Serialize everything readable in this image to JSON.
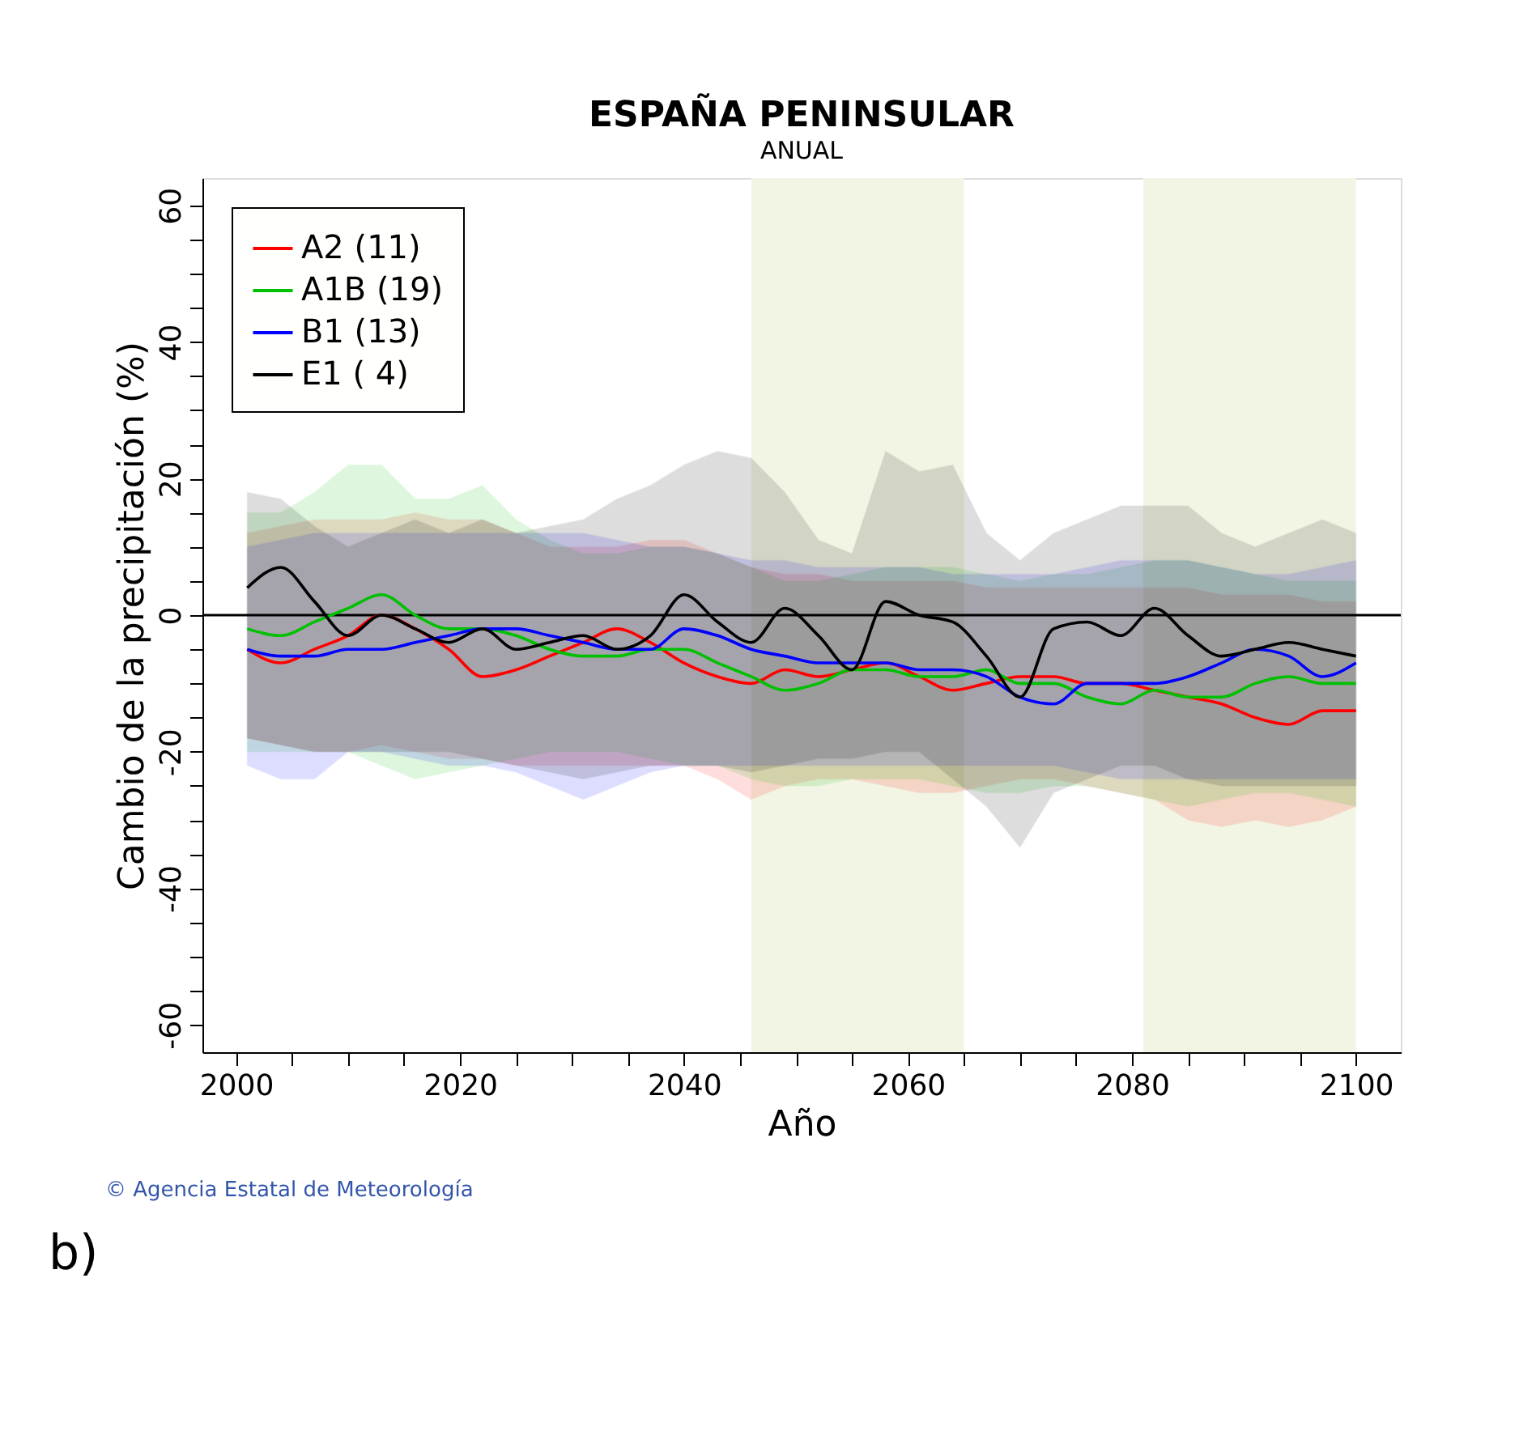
{
  "chart_data": {
    "type": "line",
    "title": "ESPAÑA PENINSULAR",
    "subtitle": "ANUAL",
    "xlabel": "Año",
    "ylabel": "Cambio de la precipitación (%)",
    "x": [
      2001,
      2004,
      2007,
      2010,
      2013,
      2016,
      2019,
      2022,
      2025,
      2028,
      2031,
      2034,
      2037,
      2040,
      2043,
      2046,
      2049,
      2052,
      2055,
      2058,
      2061,
      2064,
      2067,
      2070,
      2073,
      2076,
      2079,
      2082,
      2085,
      2088,
      2091,
      2094,
      2097,
      2100
    ],
    "series": [
      {
        "name": "A2 (11)",
        "color": "#ff0000",
        "values": [
          -5,
          -7,
          -5,
          -3,
          0,
          -2,
          -5,
          -9,
          -8,
          -6,
          -4,
          -2,
          -4,
          -7,
          -9,
          -10,
          -8,
          -9,
          -8,
          -7,
          -9,
          -11,
          -10,
          -9,
          -9,
          -10,
          -10,
          -11,
          -12,
          -13,
          -15,
          -16,
          -14,
          -14
        ],
        "upper": [
          12,
          13,
          14,
          14,
          14,
          15,
          14,
          14,
          12,
          10,
          10,
          10,
          11,
          11,
          9,
          7,
          6,
          6,
          5,
          5,
          5,
          5,
          4,
          4,
          4,
          4,
          4,
          4,
          4,
          3,
          3,
          3,
          2,
          2
        ],
        "lower": [
          -18,
          -19,
          -20,
          -20,
          -19,
          -20,
          -21,
          -21,
          -22,
          -22,
          -22,
          -22,
          -22,
          -22,
          -24,
          -27,
          -25,
          -24,
          -24,
          -25,
          -26,
          -26,
          -25,
          -24,
          -24,
          -25,
          -26,
          -27,
          -30,
          -31,
          -30,
          -31,
          -30,
          -28
        ]
      },
      {
        "name": "A1B (19)",
        "color": "#00c000",
        "values": [
          -2,
          -3,
          -1,
          1,
          3,
          0,
          -2,
          -2,
          -3,
          -5,
          -6,
          -6,
          -5,
          -5,
          -7,
          -9,
          -11,
          -10,
          -8,
          -8,
          -9,
          -9,
          -8,
          -10,
          -10,
          -12,
          -13,
          -11,
          -12,
          -12,
          -10,
          -9,
          -10,
          -10
        ],
        "upper": [
          15,
          15,
          18,
          22,
          22,
          17,
          17,
          19,
          14,
          11,
          9,
          9,
          10,
          10,
          9,
          7,
          5,
          5,
          6,
          7,
          7,
          7,
          6,
          5,
          6,
          6,
          7,
          8,
          8,
          7,
          6,
          5,
          5,
          5
        ],
        "lower": [
          -20,
          -20,
          -20,
          -20,
          -22,
          -24,
          -23,
          -22,
          -21,
          -20,
          -20,
          -20,
          -21,
          -22,
          -22,
          -24,
          -25,
          -25,
          -24,
          -24,
          -24,
          -25,
          -26,
          -26,
          -25,
          -25,
          -26,
          -27,
          -28,
          -27,
          -26,
          -26,
          -27,
          -28
        ]
      },
      {
        "name": "B1 (13)",
        "color": "#0000ff",
        "values": [
          -5,
          -6,
          -6,
          -5,
          -5,
          -4,
          -3,
          -2,
          -2,
          -3,
          -4,
          -5,
          -5,
          -2,
          -3,
          -5,
          -6,
          -7,
          -7,
          -7,
          -8,
          -8,
          -9,
          -12,
          -13,
          -10,
          -10,
          -10,
          -9,
          -7,
          -5,
          -6,
          -9,
          -7
        ],
        "upper": [
          10,
          11,
          12,
          12,
          12,
          12,
          12,
          12,
          12,
          12,
          12,
          11,
          10,
          10,
          9,
          8,
          8,
          7,
          7,
          7,
          7,
          6,
          6,
          6,
          6,
          7,
          8,
          8,
          8,
          7,
          6,
          6,
          7,
          8
        ],
        "lower": [
          -22,
          -24,
          -24,
          -20,
          -20,
          -21,
          -22,
          -22,
          -23,
          -25,
          -27,
          -25,
          -23,
          -22,
          -22,
          -22,
          -22,
          -22,
          -22,
          -22,
          -22,
          -22,
          -22,
          -22,
          -22,
          -23,
          -24,
          -24,
          -24,
          -24,
          -24,
          -24,
          -24,
          -24
        ]
      },
      {
        "name": "E1 ( 4)",
        "color": "#000000",
        "values": [
          4,
          7,
          2,
          -3,
          0,
          -2,
          -4,
          -2,
          -5,
          -4,
          -3,
          -5,
          -3,
          3,
          -1,
          -4,
          1,
          -3,
          -8,
          2,
          0,
          -1,
          -6,
          -12,
          -2,
          -1,
          -3,
          1,
          -3,
          -6,
          -5,
          -4,
          -5,
          -6
        ],
        "upper": [
          18,
          17,
          13,
          10,
          12,
          14,
          12,
          14,
          12,
          13,
          14,
          17,
          19,
          22,
          24,
          23,
          18,
          11,
          9,
          24,
          21,
          22,
          12,
          8,
          12,
          14,
          16,
          16,
          16,
          12,
          10,
          12,
          14,
          12
        ],
        "lower": [
          -18,
          -19,
          -20,
          -20,
          -20,
          -20,
          -20,
          -21,
          -22,
          -23,
          -24,
          -23,
          -22,
          -22,
          -22,
          -23,
          -22,
          -21,
          -21,
          -20,
          -20,
          -24,
          -28,
          -34,
          -26,
          -24,
          -22,
          -22,
          -24,
          -25,
          -25,
          -25,
          -25,
          -25
        ]
      }
    ],
    "xlim": [
      1997,
      2104
    ],
    "ylim": [
      -64,
      64
    ],
    "xticks": [
      2000,
      {
        "value": 2005,
        "label": null
      },
      {
        "value": 2010,
        "label": null
      },
      {
        "value": 2015,
        "label": null
      },
      2020,
      {
        "value": 2025,
        "label": null
      },
      {
        "value": 2030,
        "label": null
      },
      {
        "value": 2035,
        "label": null
      },
      2040,
      {
        "value": 2045,
        "label": null
      },
      {
        "value": 2050,
        "label": null
      },
      {
        "value": 2055,
        "label": null
      },
      2060,
      {
        "value": 2065,
        "label": null
      },
      {
        "value": 2070,
        "label": null
      },
      {
        "value": 2075,
        "label": null
      },
      2080,
      {
        "value": 2085,
        "label": null
      },
      {
        "value": 2090,
        "label": null
      },
      {
        "value": 2095,
        "label": null
      },
      2100
    ],
    "yticks": [
      -60,
      {
        "value": -55,
        "label": null
      },
      {
        "value": -50,
        "label": null
      },
      {
        "value": -45,
        "label": null
      },
      -40,
      {
        "value": -35,
        "label": null
      },
      {
        "value": -30,
        "label": null
      },
      {
        "value": -25,
        "label": null
      },
      -20,
      {
        "value": -15,
        "label": null
      },
      {
        "value": -10,
        "label": null
      },
      {
        "value": -5,
        "label": null
      },
      0,
      {
        "value": 5,
        "label": null
      },
      {
        "value": 10,
        "label": null
      },
      {
        "value": 15,
        "label": null
      },
      20,
      {
        "value": 25,
        "label": null
      },
      {
        "value": 30,
        "label": null
      },
      {
        "value": 35,
        "label": null
      },
      40,
      {
        "value": 45,
        "label": null
      },
      {
        "value": 50,
        "label": null
      },
      {
        "value": 55,
        "label": null
      },
      60
    ],
    "ref_lines": [
      {
        "axis": "y",
        "value": 0,
        "color": "#000000"
      }
    ],
    "bands": [
      {
        "axis": "x",
        "from": 2046,
        "to": 2065,
        "color": "#f3f5e4"
      },
      {
        "axis": "x",
        "from": 2081,
        "to": 2100,
        "color": "#f3f5e4"
      }
    ],
    "annotations": [
      "© Agencia Estatal de Meteorología",
      "b)"
    ],
    "legend": "top left",
    "grid": false,
    "marker": "none",
    "line_style": "solid"
  }
}
